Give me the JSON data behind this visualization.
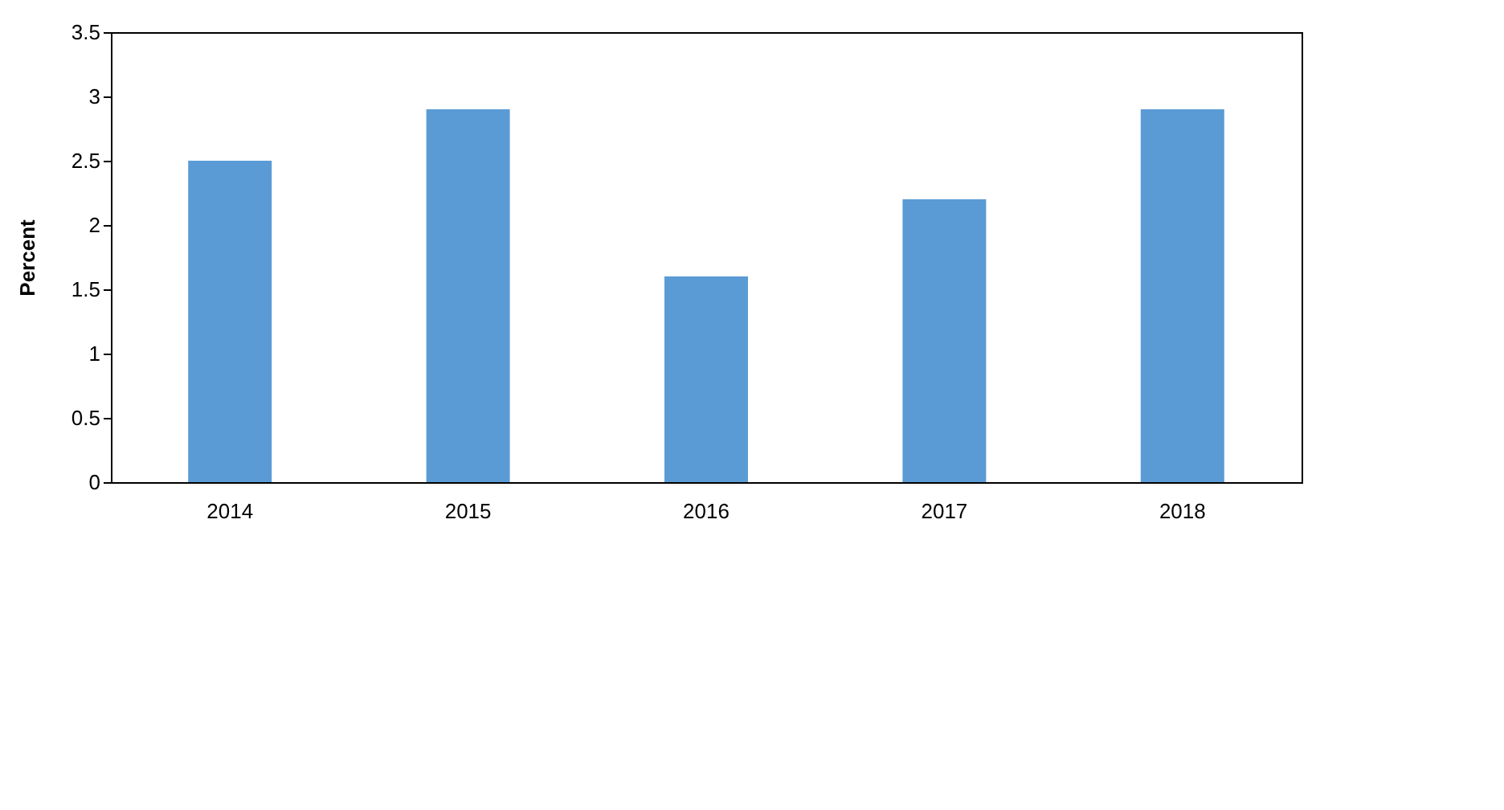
{
  "chart_data": {
    "type": "bar",
    "ylabel": "Percent",
    "categories": [
      "2014",
      "2015",
      "2016",
      "2017",
      "2018"
    ],
    "values": [
      2.5,
      2.9,
      1.6,
      2.2,
      2.9
    ],
    "color": "#5b9bd5",
    "ylim": [
      0,
      3.5
    ],
    "yticks": [
      0,
      0.5,
      1,
      1.5,
      2,
      2.5,
      3,
      3.5
    ],
    "grid": false
  }
}
